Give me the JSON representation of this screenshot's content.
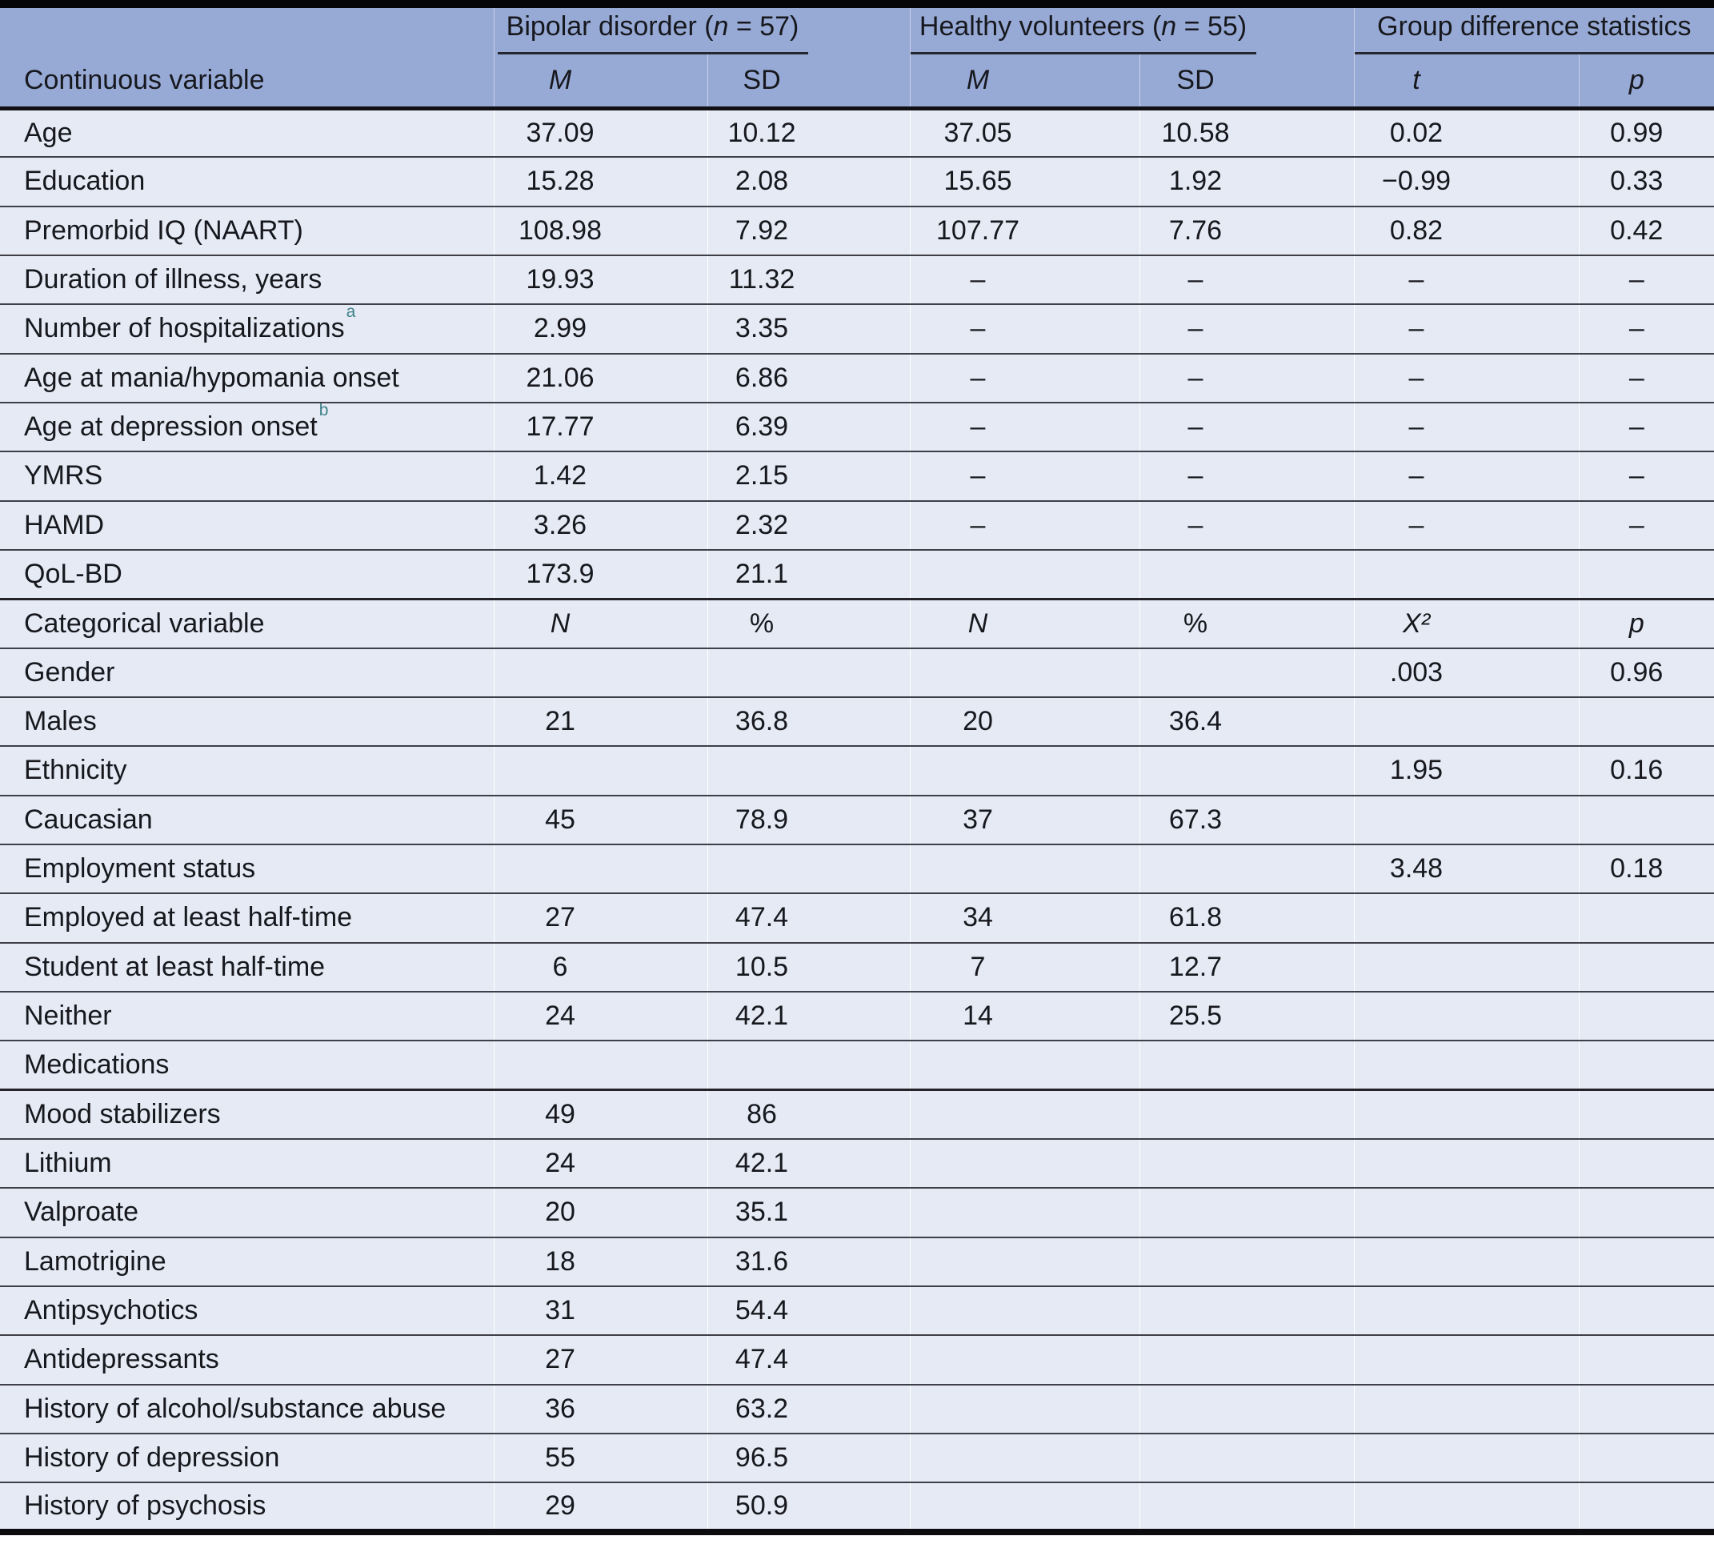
{
  "header": {
    "col_label": "Continuous variable",
    "groups": [
      {
        "pre": "Bipolar disorder (",
        "n_italic": "n",
        "post": " = 57)"
      },
      {
        "pre": "Healthy volunteers (",
        "n_italic": "n",
        "post": " = 55)"
      },
      {
        "title": "Group difference statistics"
      }
    ],
    "stat_cols": [
      "M",
      "SD",
      "M",
      "SD",
      "t",
      "p"
    ]
  },
  "colors": {
    "header_blue": "#97aad6",
    "row_background": "#e5eaf5",
    "row_separator": "#3f3f48",
    "section_separator": "#232329",
    "frame_black": "#050507",
    "footnote_teal": "#3e8287"
  },
  "rows": [
    {
      "label": "Age",
      "cells": [
        "37.09",
        "10.12",
        "37.05",
        "10.58",
        "0.02",
        "0.99"
      ]
    },
    {
      "label": "Education",
      "cells": [
        "15.28",
        "2.08",
        "15.65",
        "1.92",
        "−0.99",
        "0.33"
      ]
    },
    {
      "label": "Premorbid IQ (NAART)",
      "cells": [
        "108.98",
        "7.92",
        "107.77",
        "7.76",
        "0.82",
        "0.42"
      ]
    },
    {
      "label": "Duration of illness, years",
      "cells": [
        "19.93",
        "11.32",
        "–",
        "–",
        "–",
        "–"
      ]
    },
    {
      "label": "Number of hospitalizations",
      "sup": "a",
      "cells": [
        "2.99",
        "3.35",
        "–",
        "–",
        "–",
        "–"
      ]
    },
    {
      "label": "Age at mania/hypomania onset",
      "cells": [
        "21.06",
        "6.86",
        "–",
        "–",
        "–",
        "–"
      ]
    },
    {
      "label": "Age at depression onset",
      "sup": "b",
      "cells": [
        "17.77",
        "6.39",
        "–",
        "–",
        "–",
        "–"
      ]
    },
    {
      "label": "YMRS",
      "cells": [
        "1.42",
        "2.15",
        "–",
        "–",
        "–",
        "–"
      ]
    },
    {
      "label": "HAMD",
      "cells": [
        "3.26",
        "2.32",
        "–",
        "–",
        "–",
        "–"
      ]
    },
    {
      "label": "QoL-BD",
      "cells": [
        "173.9",
        "21.1",
        "",
        "",
        "",
        ""
      ]
    },
    {
      "label": "Categorical variable",
      "subheader": true,
      "section": true,
      "cells": [
        "N",
        "%",
        "N",
        "%",
        "X²",
        "p"
      ]
    },
    {
      "label": "Gender",
      "cells": [
        "",
        "",
        "",
        "",
        ".003",
        "0.96"
      ]
    },
    {
      "label": "Males",
      "cells": [
        "21",
        "36.8",
        "20",
        "36.4",
        "",
        ""
      ]
    },
    {
      "label": "Ethnicity",
      "cells": [
        "",
        "",
        "",
        "",
        "1.95",
        "0.16"
      ]
    },
    {
      "label": "Caucasian",
      "cells": [
        "45",
        "78.9",
        "37",
        "67.3",
        "",
        ""
      ]
    },
    {
      "label": "Employment status",
      "cells": [
        "",
        "",
        "",
        "",
        "3.48",
        "0.18"
      ]
    },
    {
      "label": "Employed at least half-time",
      "cells": [
        "27",
        "47.4",
        "34",
        "61.8",
        "",
        ""
      ]
    },
    {
      "label": "Student at least half-time",
      "cells": [
        "6",
        "10.5",
        "7",
        "12.7",
        "",
        ""
      ]
    },
    {
      "label": "Neither",
      "cells": [
        "24",
        "42.1",
        "14",
        "25.5",
        "",
        ""
      ]
    },
    {
      "label": "Medications",
      "cells": [
        "",
        "",
        "",
        "",
        "",
        ""
      ]
    },
    {
      "label": "Mood stabilizers",
      "section": true,
      "cells": [
        "49",
        "86",
        "",
        "",
        "",
        ""
      ]
    },
    {
      "label": "Lithium",
      "cells": [
        "24",
        "42.1",
        "",
        "",
        "",
        ""
      ]
    },
    {
      "label": "Valproate",
      "cells": [
        "20",
        "35.1",
        "",
        "",
        "",
        ""
      ]
    },
    {
      "label": "Lamotrigine",
      "cells": [
        "18",
        "31.6",
        "",
        "",
        "",
        ""
      ]
    },
    {
      "label": "Antipsychotics",
      "cells": [
        "31",
        "54.4",
        "",
        "",
        "",
        ""
      ]
    },
    {
      "label": "Antidepressants",
      "cells": [
        "27",
        "47.4",
        "",
        "",
        "",
        ""
      ]
    },
    {
      "label": "History of alcohol/substance abuse",
      "cells": [
        "36",
        "63.2",
        "",
        "",
        "",
        ""
      ]
    },
    {
      "label": "History of depression",
      "cells": [
        "55",
        "96.5",
        "",
        "",
        "",
        ""
      ]
    },
    {
      "label": "History of psychosis",
      "cells": [
        "29",
        "50.9",
        "",
        "",
        "",
        ""
      ]
    }
  ]
}
